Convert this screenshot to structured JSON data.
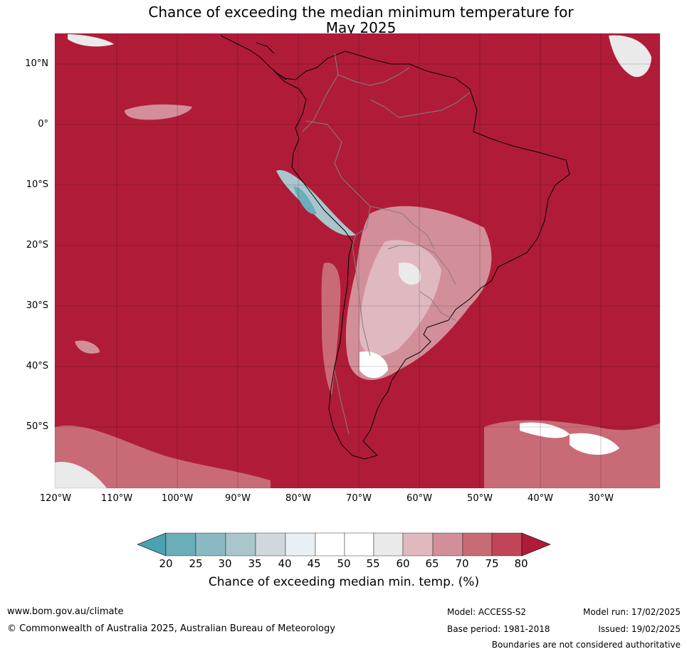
{
  "title": {
    "line1": "Chance of exceeding the median minimum temperature for",
    "line2": "May 2025"
  },
  "map": {
    "latitude_labels": [
      "10°N",
      "0°",
      "10°S",
      "20°S",
      "30°S",
      "40°S",
      "50°S"
    ],
    "longitude_labels": [
      "120°W",
      "110°W",
      "100°W",
      "90°W",
      "80°W",
      "70°W",
      "60°W",
      "50°W",
      "40°W",
      "30°W"
    ],
    "background_color": "#b01c38",
    "coastline_color": "#000000",
    "border_color": "#808080"
  },
  "colorbar": {
    "ticks": [
      "20",
      "25",
      "30",
      "35",
      "40",
      "45",
      "50",
      "55",
      "60",
      "65",
      "70",
      "75",
      "80"
    ],
    "colors": [
      "#4ba1af",
      "#6aaeba",
      "#8ab9c4",
      "#a9c6cd",
      "#d1d8db",
      "#e9eff2",
      "#ffffff",
      "#ffffff",
      "#ebeaea",
      "#e0b9c0",
      "#d38f99",
      "#c96b77",
      "#c04657",
      "#b01c38"
    ],
    "label": "Chance of exceeding median min. temp. (%)"
  },
  "footer": {
    "url": "www.bom.gov.au/climate",
    "copyright": "© Commonwealth of Australia 2025, Australian Bureau of Meteorology",
    "model": "Model: ACCESS-S2",
    "base_period": "Base period: 1981-2018",
    "model_run": "Model run: 17/02/2025",
    "issued": "Issued: 19/02/2025",
    "disclaimer": "Boundaries are not considered authoritative"
  }
}
